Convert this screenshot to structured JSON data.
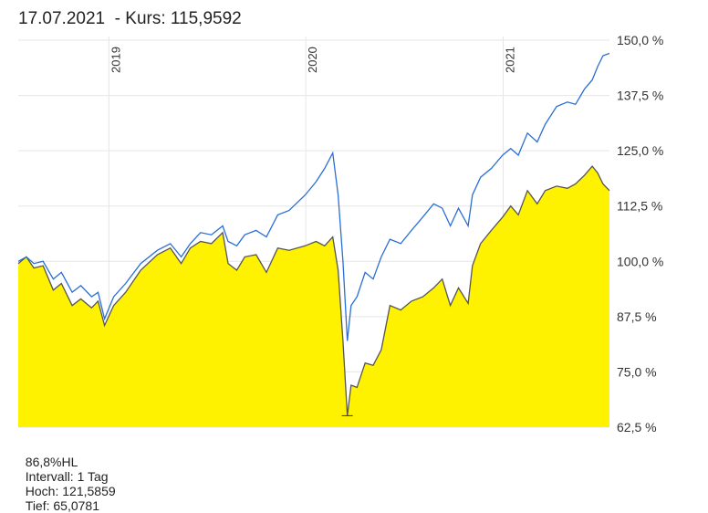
{
  "header": {
    "date": "17.07.2021",
    "separator": "  - ",
    "price_label": "Kurs: 115,9592"
  },
  "footer": {
    "performance": "86,8%HL",
    "interval": "Intervall: 1 Tag",
    "high": "Hoch: 121,5859",
    "low": "Tief: 65,0781"
  },
  "colors": {
    "fund_line": "#555555",
    "fund_fill": "#fff200",
    "benchmark_line": "#2a6fd6",
    "grid": "#e6e6e6"
  },
  "chart_data": {
    "type": "area",
    "x_axis": {
      "type": "time",
      "range": [
        "2018-07-17",
        "2021-07-17"
      ],
      "ticks": [
        {
          "label": "2019",
          "date": "2019-01-01"
        },
        {
          "label": "2020",
          "date": "2020-01-01"
        },
        {
          "label": "2021",
          "date": "2021-01-01"
        }
      ],
      "tick_orientation": "vertical"
    },
    "y_axis": {
      "position": "right",
      "range": [
        62.5,
        150
      ],
      "ticks": [
        "150,0 %",
        "137,5 %",
        "125,0 %",
        "112,5 %",
        "100,0 %",
        "87,5 %",
        "75,0 %",
        "62,5 %"
      ],
      "tick_values": [
        150,
        137.5,
        125,
        112.5,
        100,
        87.5,
        75,
        62.5
      ]
    },
    "grid": true,
    "series": [
      {
        "style": "area",
        "points": [
          [
            "2018-07-17",
            99.5
          ],
          [
            "2018-08-01",
            101
          ],
          [
            "2018-08-15",
            98.5
          ],
          [
            "2018-09-01",
            99
          ],
          [
            "2018-09-20",
            93.5
          ],
          [
            "2018-10-05",
            95
          ],
          [
            "2018-10-25",
            90
          ],
          [
            "2018-11-10",
            91.5
          ],
          [
            "2018-11-30",
            89.5
          ],
          [
            "2018-12-12",
            91
          ],
          [
            "2018-12-24",
            85.5
          ],
          [
            "2019-01-10",
            90
          ],
          [
            "2019-02-01",
            93
          ],
          [
            "2019-03-01",
            98
          ],
          [
            "2019-04-01",
            101.5
          ],
          [
            "2019-04-25",
            103
          ],
          [
            "2019-05-15",
            99.5
          ],
          [
            "2019-06-01",
            103
          ],
          [
            "2019-06-20",
            104.5
          ],
          [
            "2019-07-10",
            104
          ],
          [
            "2019-07-31",
            106.5
          ],
          [
            "2019-08-10",
            99.5
          ],
          [
            "2019-08-26",
            98
          ],
          [
            "2019-09-10",
            101
          ],
          [
            "2019-10-01",
            101.5
          ],
          [
            "2019-10-20",
            97.5
          ],
          [
            "2019-11-10",
            103
          ],
          [
            "2019-12-01",
            102.5
          ],
          [
            "2019-12-31",
            103.5
          ],
          [
            "2020-01-20",
            104.5
          ],
          [
            "2020-02-05",
            103.5
          ],
          [
            "2020-02-20",
            105.5
          ],
          [
            "2020-03-01",
            98
          ],
          [
            "2020-03-10",
            82
          ],
          [
            "2020-03-18",
            65.1
          ],
          [
            "2020-03-25",
            72
          ],
          [
            "2020-04-05",
            71.5
          ],
          [
            "2020-04-20",
            77
          ],
          [
            "2020-05-05",
            76.5
          ],
          [
            "2020-05-20",
            80
          ],
          [
            "2020-06-05",
            90
          ],
          [
            "2020-06-25",
            89
          ],
          [
            "2020-07-15",
            91
          ],
          [
            "2020-08-05",
            92
          ],
          [
            "2020-08-25",
            94
          ],
          [
            "2020-09-10",
            96
          ],
          [
            "2020-09-25",
            90
          ],
          [
            "2020-10-10",
            94
          ],
          [
            "2020-10-28",
            90.5
          ],
          [
            "2020-11-05",
            99
          ],
          [
            "2020-11-20",
            104
          ],
          [
            "2020-12-10",
            107
          ],
          [
            "2020-12-31",
            110
          ],
          [
            "2021-01-15",
            112.5
          ],
          [
            "2021-01-29",
            110.5
          ],
          [
            "2021-02-15",
            116
          ],
          [
            "2021-03-05",
            113
          ],
          [
            "2021-03-20",
            116
          ],
          [
            "2021-04-10",
            117
          ],
          [
            "2021-04-30",
            116.5
          ],
          [
            "2021-05-15",
            117.5
          ],
          [
            "2021-06-01",
            119.5
          ],
          [
            "2021-06-15",
            121.5
          ],
          [
            "2021-06-25",
            120
          ],
          [
            "2021-07-05",
            117.5
          ],
          [
            "2021-07-17",
            116
          ]
        ]
      },
      {
        "style": "line",
        "points": [
          [
            "2018-07-17",
            100
          ],
          [
            "2018-08-01",
            101
          ],
          [
            "2018-08-15",
            99.5
          ],
          [
            "2018-09-01",
            100
          ],
          [
            "2018-09-20",
            96
          ],
          [
            "2018-10-05",
            97.5
          ],
          [
            "2018-10-25",
            93
          ],
          [
            "2018-11-10",
            94.5
          ],
          [
            "2018-11-30",
            92
          ],
          [
            "2018-12-12",
            93
          ],
          [
            "2018-12-24",
            87
          ],
          [
            "2019-01-10",
            92
          ],
          [
            "2019-02-01",
            95
          ],
          [
            "2019-03-01",
            99.5
          ],
          [
            "2019-04-01",
            102.5
          ],
          [
            "2019-04-25",
            104
          ],
          [
            "2019-05-15",
            101
          ],
          [
            "2019-06-01",
            104
          ],
          [
            "2019-06-20",
            106.5
          ],
          [
            "2019-07-10",
            106
          ],
          [
            "2019-07-31",
            108
          ],
          [
            "2019-08-10",
            104.5
          ],
          [
            "2019-08-26",
            103.5
          ],
          [
            "2019-09-10",
            106
          ],
          [
            "2019-10-01",
            107
          ],
          [
            "2019-10-20",
            105.5
          ],
          [
            "2019-11-10",
            110.5
          ],
          [
            "2019-12-01",
            111.5
          ],
          [
            "2019-12-31",
            115
          ],
          [
            "2020-01-20",
            118
          ],
          [
            "2020-02-05",
            121
          ],
          [
            "2020-02-20",
            124.5
          ],
          [
            "2020-03-01",
            115
          ],
          [
            "2020-03-10",
            100
          ],
          [
            "2020-03-18",
            82
          ],
          [
            "2020-03-25",
            90
          ],
          [
            "2020-04-05",
            92
          ],
          [
            "2020-04-20",
            97.5
          ],
          [
            "2020-05-05",
            96
          ],
          [
            "2020-05-20",
            101
          ],
          [
            "2020-06-05",
            105
          ],
          [
            "2020-06-25",
            104
          ],
          [
            "2020-07-15",
            107
          ],
          [
            "2020-08-05",
            110
          ],
          [
            "2020-08-25",
            113
          ],
          [
            "2020-09-10",
            112
          ],
          [
            "2020-09-25",
            108
          ],
          [
            "2020-10-10",
            112
          ],
          [
            "2020-10-28",
            108
          ],
          [
            "2020-11-05",
            115
          ],
          [
            "2020-11-20",
            119
          ],
          [
            "2020-12-10",
            121
          ],
          [
            "2020-12-31",
            124
          ],
          [
            "2021-01-15",
            125.5
          ],
          [
            "2021-01-29",
            124
          ],
          [
            "2021-02-15",
            129
          ],
          [
            "2021-03-05",
            127
          ],
          [
            "2021-03-20",
            131
          ],
          [
            "2021-04-10",
            135
          ],
          [
            "2021-04-30",
            136
          ],
          [
            "2021-05-15",
            135.5
          ],
          [
            "2021-06-01",
            139
          ],
          [
            "2021-06-15",
            141
          ],
          [
            "2021-06-25",
            144
          ],
          [
            "2021-07-05",
            146.5
          ],
          [
            "2021-07-17",
            147
          ]
        ]
      }
    ]
  }
}
